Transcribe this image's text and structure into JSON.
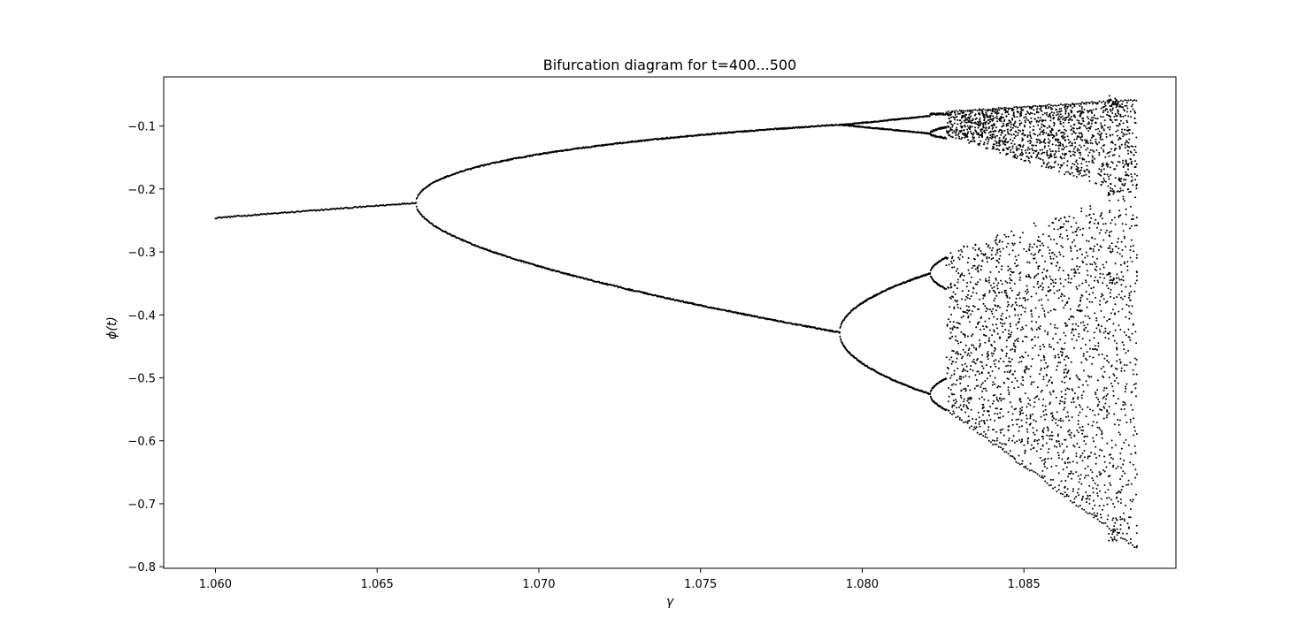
{
  "chart_data": {
    "type": "scatter",
    "title": "Bifurcation diagram for t=400...500",
    "xlabel": "γ",
    "ylabel": "ϕ(t)",
    "xlim": [
      1.0584,
      1.0897
    ],
    "ylim": [
      -0.8025,
      -0.022
    ],
    "x_ticks": [
      1.06,
      1.065,
      1.07,
      1.075,
      1.08,
      1.085
    ],
    "x_tick_labels": [
      "1.060",
      "1.065",
      "1.070",
      "1.075",
      "1.080",
      "1.085"
    ],
    "y_ticks": [
      -0.1,
      -0.2,
      -0.3,
      -0.4,
      -0.5,
      -0.6,
      -0.7,
      -0.8
    ],
    "y_tick_labels": [
      "−0.1",
      "−0.2",
      "−0.3",
      "−0.4",
      "−0.5",
      "−0.6",
      "−0.7",
      "−0.8"
    ],
    "grid": false,
    "legend": "none",
    "marker_color": "#000000",
    "x_range_data": [
      1.06,
      1.0885
    ],
    "branch_points": [
      {
        "x": 1.06,
        "y": -0.246
      },
      {
        "x": 1.0662,
        "y": -0.222
      },
      {
        "x": 1.0793,
        "y": -0.098
      },
      {
        "x": 1.0793,
        "y": -0.428
      },
      {
        "x": 1.0821,
        "y": -0.112
      },
      {
        "x": 1.0821,
        "y": -0.334
      },
      {
        "x": 1.0821,
        "y": -0.526
      },
      {
        "x": 1.0885,
        "y": -0.058
      },
      {
        "x": 1.0885,
        "y": -0.77
      }
    ],
    "chaos_onset_x": 1.0826,
    "chaos_envelope": {
      "upper_band": [
        [
          1.0826,
          -0.078,
          -0.115
        ],
        [
          1.0885,
          -0.058,
          -0.215
        ]
      ],
      "lower_band": [
        [
          1.0826,
          -0.3,
          -0.55
        ],
        [
          1.0885,
          -0.2,
          -0.77
        ]
      ]
    }
  }
}
